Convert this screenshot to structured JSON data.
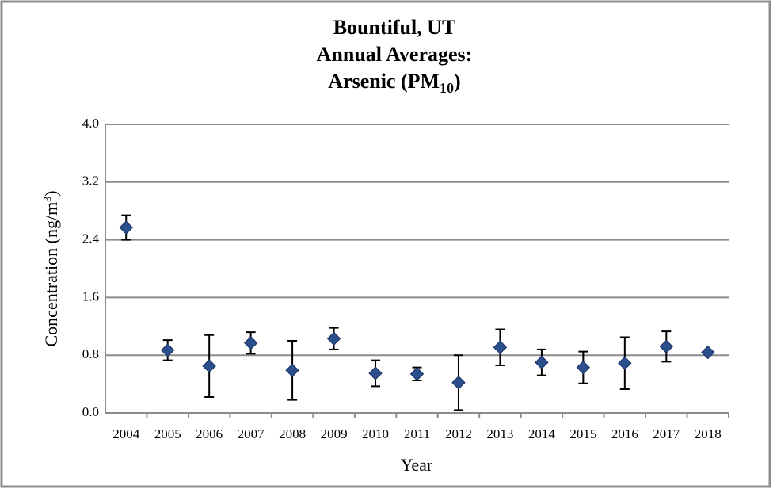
{
  "chart_data": {
    "type": "scatter",
    "title_lines": [
      "Bountiful, UT",
      "Annual Averages:"
    ],
    "title_last": {
      "text": "Arsenic (PM",
      "sub": "10",
      "close": ")"
    },
    "x_label": "Year",
    "y_label": {
      "text": "Concentration (ng/m",
      "sup": "3",
      "close": ")"
    },
    "categories": [
      "2004",
      "2005",
      "2006",
      "2007",
      "2008",
      "2009",
      "2010",
      "2011",
      "2012",
      "2013",
      "2014",
      "2015",
      "2016",
      "2017",
      "2018"
    ],
    "series": [
      {
        "name": "Arsenic",
        "color": "#2b4f8c",
        "values": [
          2.57,
          0.87,
          0.65,
          0.97,
          0.59,
          1.03,
          0.55,
          0.54,
          0.42,
          0.91,
          0.7,
          0.63,
          0.69,
          0.92,
          0.84
        ],
        "errors": [
          0.17,
          0.14,
          0.43,
          0.15,
          0.41,
          0.15,
          0.18,
          0.09,
          0.38,
          0.25,
          0.18,
          0.22,
          0.36,
          0.21,
          null
        ]
      }
    ],
    "ylim": [
      0,
      4
    ],
    "yticks": [
      {
        "value": 0,
        "label": "0.0"
      },
      0.8,
      1.6,
      2.4,
      3.2,
      {
        "value": 4,
        "label": "4.0"
      }
    ],
    "grid": true
  }
}
